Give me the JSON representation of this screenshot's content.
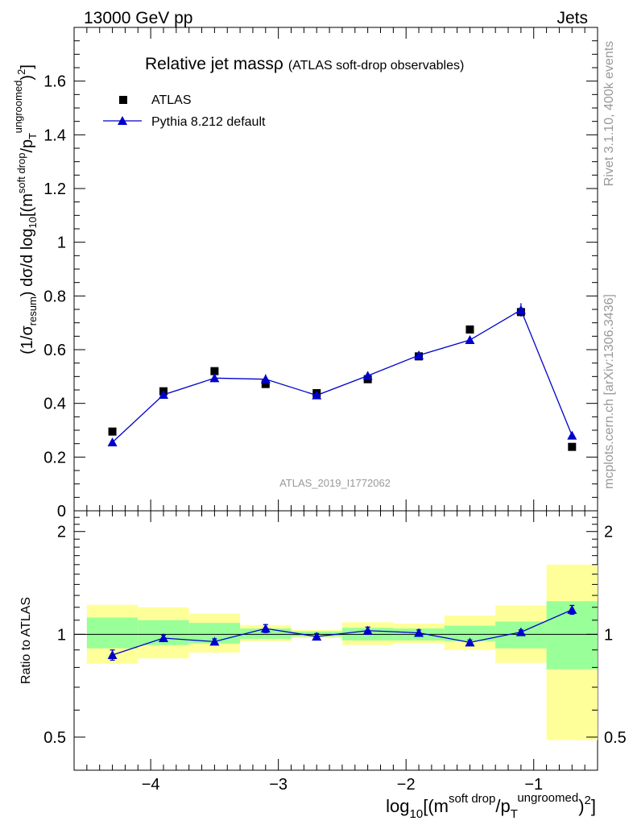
{
  "header": {
    "beam": "13000 GeV pp",
    "category": "Jets",
    "side_rivet": "Rivet 3.1.10,  400k events",
    "side_mcplots": "mcplots.cern.ch [arXiv:1306.3436]",
    "analysis_id": "ATLAS_2019_I1772062"
  },
  "chart_data": {
    "type": "scatter",
    "title": "Relative jet massρ",
    "subtitle": "(ATLAS soft-drop observables)",
    "xlabel": "log10[(m^soft drop/pT^ungroomed)^2]",
    "ylabel": "(1/σresum) dσ/d log10[(m^soft drop/pT^ungroomed)^2]",
    "ratio_ylabel": "Ratio to ATLAS",
    "xlim": [
      -4.6,
      -0.5
    ],
    "ylim": [
      0,
      1.8
    ],
    "ratio_ylim": [
      0.4,
      2.3
    ],
    "x_ticks": [
      -4,
      -3,
      -2,
      -1
    ],
    "x_tick_labels": [
      "−4",
      "−3",
      "−2",
      "−1"
    ],
    "y_ticks": [
      0,
      0.2,
      0.4,
      0.6,
      0.8,
      1,
      1.2,
      1.4,
      1.6
    ],
    "y_tick_labels": [
      "0",
      "0.2",
      "0.4",
      "0.6",
      "0.8",
      "1",
      "1.2",
      "1.4",
      "1.6"
    ],
    "ratio_ticks": [
      0.5,
      1,
      2
    ],
    "ratio_tick_labels": [
      "0.5",
      "1",
      "2"
    ],
    "legend_position": "top-left",
    "legend": [
      "ATLAS",
      "Pythia 8.212 default"
    ],
    "bin_edges": [
      -4.5,
      -4.1,
      -3.7,
      -3.3,
      -2.9,
      -2.5,
      -2.1,
      -1.7,
      -1.3,
      -0.9,
      -0.5
    ],
    "x": [
      -4.3,
      -3.9,
      -3.5,
      -3.1,
      -2.7,
      -2.3,
      -1.9,
      -1.5,
      -1.1,
      -0.7
    ],
    "series": [
      {
        "name": "ATLAS",
        "values": [
          0.295,
          0.445,
          0.52,
          0.472,
          0.438,
          0.49,
          0.575,
          0.675,
          0.74,
          0.238
        ],
        "color": "#000000",
        "marker": "square"
      },
      {
        "name": "Pythia 8.212 default",
        "values": [
          0.255,
          0.432,
          0.494,
          0.49,
          0.43,
          0.503,
          0.579,
          0.636,
          0.748,
          0.28
        ],
        "errors": [
          0.005,
          0.008,
          0.01,
          0.018,
          0.009,
          0.015,
          0.015,
          0.015,
          0.025,
          0.008
        ],
        "color": "#0000cc",
        "marker": "triangle"
      }
    ],
    "ratio": {
      "values": [
        0.87,
        0.975,
        0.952,
        1.04,
        0.985,
        1.025,
        1.01,
        0.947,
        1.015,
        1.18
      ],
      "errors": [
        0.03,
        0.02,
        0.018,
        0.028,
        0.02,
        0.025,
        0.02,
        0.015,
        0.015,
        0.035
      ],
      "band_inner": [
        [
          0.91,
          1.12
        ],
        [
          0.93,
          1.1
        ],
        [
          0.94,
          1.08
        ],
        [
          0.97,
          1.04
        ],
        [
          0.985,
          1.02
        ],
        [
          0.96,
          1.045
        ],
        [
          0.96,
          1.04
        ],
        [
          0.955,
          1.06
        ],
        [
          0.91,
          1.09
        ],
        [
          0.79,
          1.25
        ]
      ],
      "band_outer": [
        [
          0.82,
          1.22
        ],
        [
          0.85,
          1.2
        ],
        [
          0.885,
          1.15
        ],
        [
          0.955,
          1.065
        ],
        [
          0.975,
          1.03
        ],
        [
          0.93,
          1.085
        ],
        [
          0.94,
          1.075
        ],
        [
          0.9,
          1.135
        ],
        [
          0.825,
          1.215
        ],
        [
          0.49,
          1.6
        ]
      ]
    },
    "colors": {
      "band_inner": "#99ff99",
      "band_outer": "#ffff99",
      "axis": "#000000",
      "side_text": "#999999"
    }
  }
}
